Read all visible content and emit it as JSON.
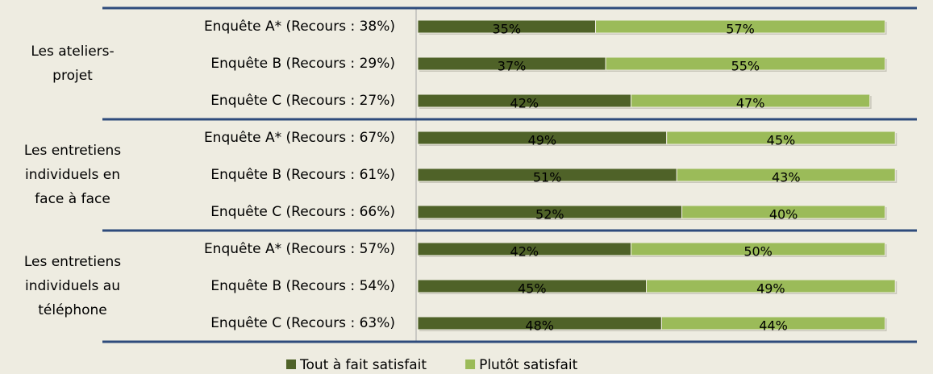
{
  "chart_data": {
    "type": "bar",
    "orientation": "horizontal",
    "stacked": true,
    "groups": [
      {
        "label": [
          "Les ateliers-",
          "projet"
        ],
        "categories": [
          "Enquête A* (Recours : 38%)",
          "Enquête B (Recours : 29%)",
          "Enquête C (Recours : 27%)"
        ]
      },
      {
        "label": [
          "Les entretiens",
          "individuels en",
          "face à face"
        ],
        "categories": [
          "Enquête A* (Recours : 67%)",
          "Enquête B (Recours : 61%)",
          "Enquête C (Recours : 66%)"
        ]
      },
      {
        "label": [
          "Les entretiens",
          "individuels au",
          "téléphone"
        ],
        "categories": [
          "Enquête A* (Recours : 57%)",
          "Enquête B (Recours : 54%)",
          "Enquête C (Recours : 63%)"
        ]
      }
    ],
    "series": [
      {
        "name": "Tout à fait satisfait",
        "color": "#4f6228",
        "values": [
          35,
          37,
          42,
          49,
          51,
          52,
          42,
          45,
          48
        ],
        "value_labels": [
          "35%",
          "37%",
          "42%",
          "49%",
          "51%",
          "52%",
          "42%",
          "45%",
          "48%"
        ]
      },
      {
        "name": "Plutôt satisfait",
        "color": "#9bbb59",
        "values": [
          57,
          55,
          47,
          45,
          43,
          40,
          50,
          49,
          44
        ],
        "value_labels": [
          "57%",
          "55%",
          "47%",
          "45%",
          "43%",
          "40%",
          "50%",
          "49%",
          "44%"
        ]
      }
    ],
    "xlim": [
      0,
      100
    ],
    "legend": "bottom"
  }
}
